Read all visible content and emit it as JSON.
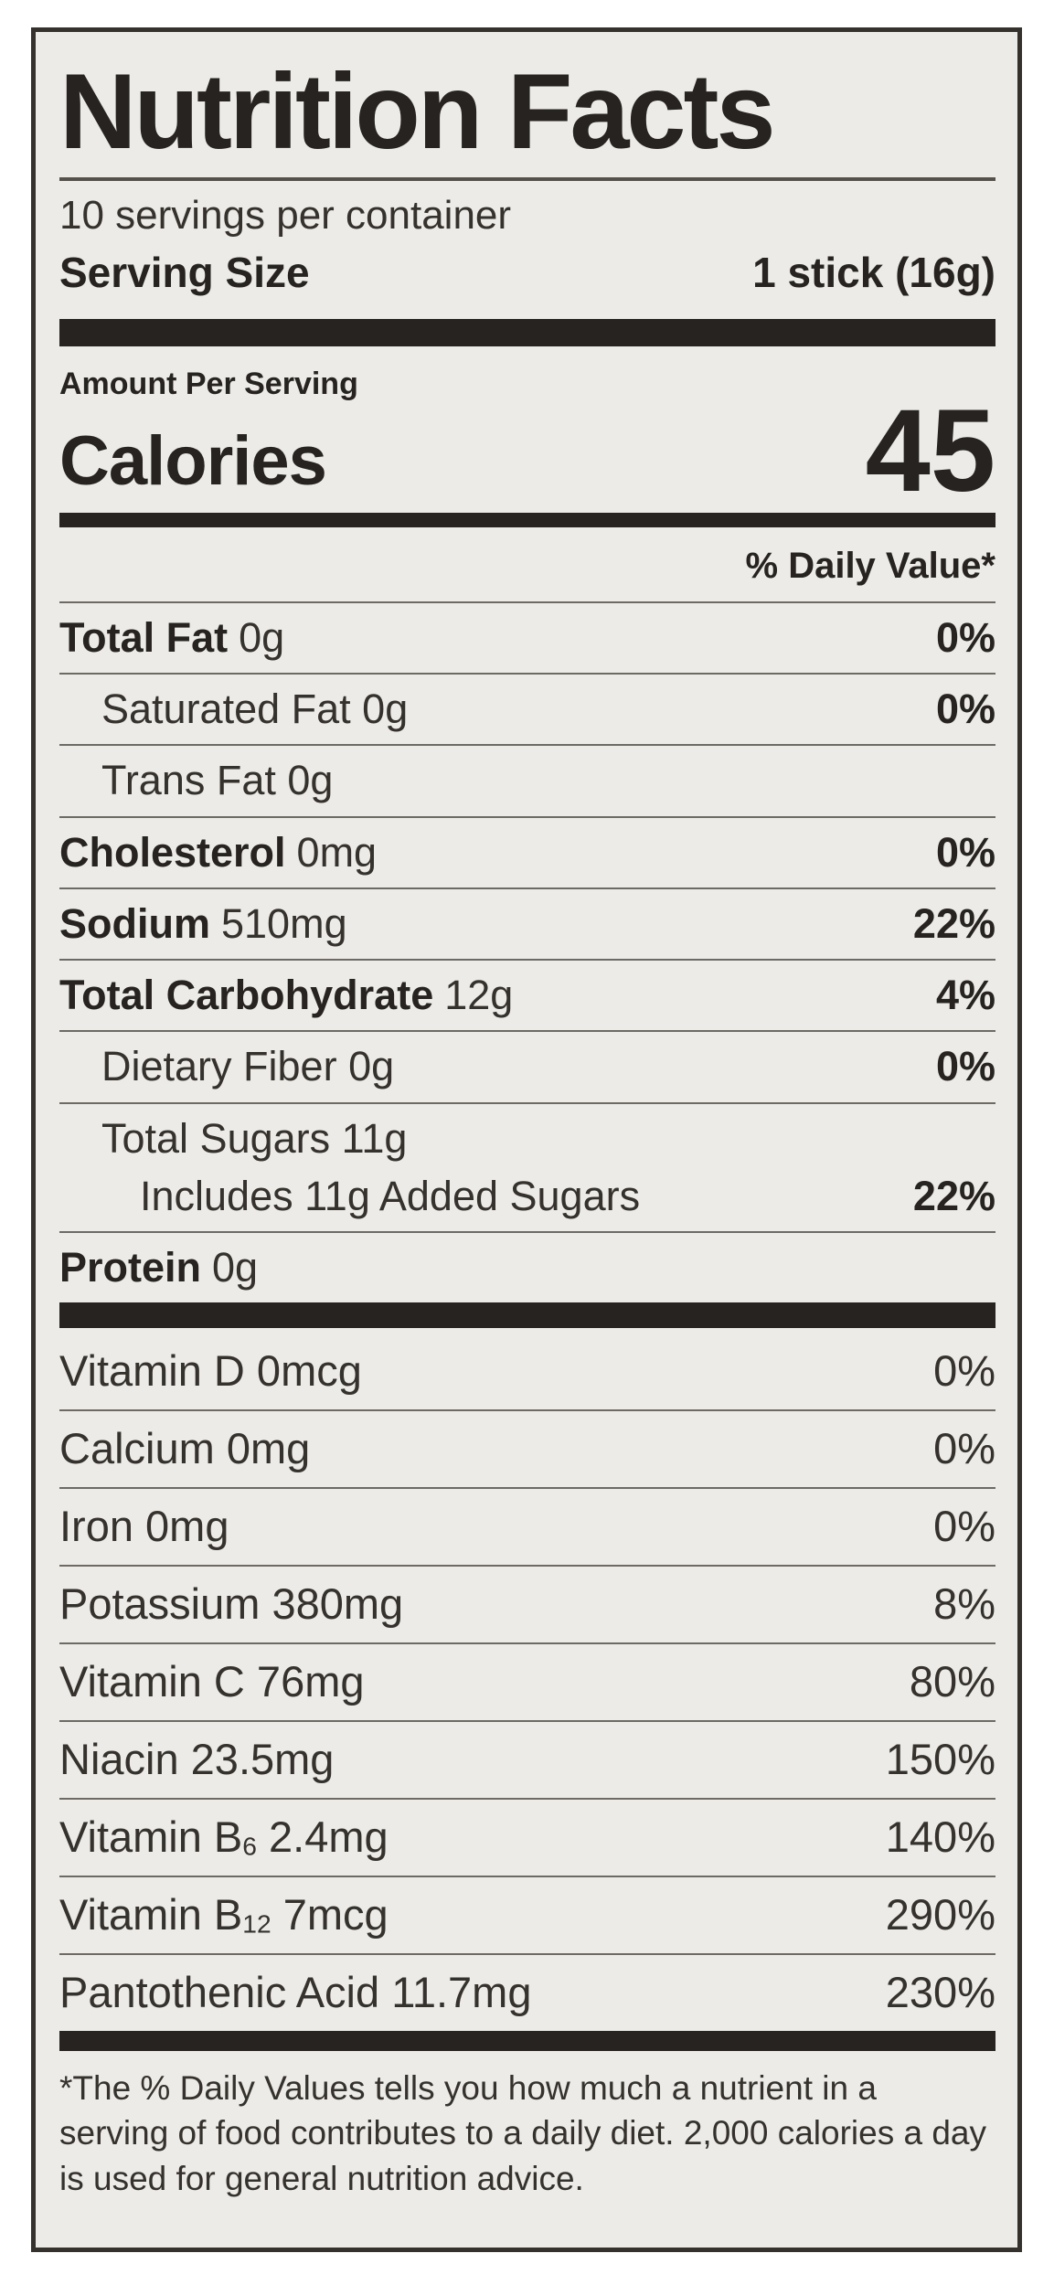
{
  "label": {
    "title": "Nutrition Facts",
    "servings_per_container": "10 servings per container",
    "serving_size_label": "Serving Size",
    "serving_size_value": "1 stick (16g)",
    "amount_per_serving": "Amount Per Serving",
    "calories_label": "Calories",
    "calories_value": "45",
    "daily_value_header": "% Daily Value*",
    "nutrient_rows": [
      {
        "name": "Total Fat",
        "amount": "0g",
        "pct": "0%"
      },
      {
        "name": "Saturated Fat 0g",
        "amount": "",
        "pct": "0%"
      },
      {
        "name": "Trans Fat 0g",
        "amount": "",
        "pct": ""
      },
      {
        "name": "Cholesterol",
        "amount": "0mg",
        "pct": "0%"
      },
      {
        "name": "Sodium",
        "amount": "510mg",
        "pct": "22%"
      },
      {
        "name": "Total Carbohydrate",
        "amount": "12g",
        "pct": "4%"
      },
      {
        "name": "Dietary Fiber 0g",
        "amount": "",
        "pct": "0%"
      },
      {
        "name": "Total Sugars 11g",
        "amount": "",
        "pct": ""
      },
      {
        "name": "Includes 11g Added Sugars",
        "amount": "",
        "pct": "22%"
      },
      {
        "name": "Protein",
        "amount": "0g",
        "pct": ""
      }
    ],
    "vitamin_rows": [
      {
        "pre": "Vitamin D 0mcg",
        "sub": "",
        "post": "",
        "pct": "0%"
      },
      {
        "pre": "Calcium 0mg",
        "sub": "",
        "post": "",
        "pct": "0%"
      },
      {
        "pre": "Iron 0mg",
        "sub": "",
        "post": "",
        "pct": "0%"
      },
      {
        "pre": "Potassium 380mg",
        "sub": "",
        "post": "",
        "pct": "8%"
      },
      {
        "pre": "Vitamin C 76mg",
        "sub": "",
        "post": "",
        "pct": "80%"
      },
      {
        "pre": "Niacin 23.5mg",
        "sub": "",
        "post": "",
        "pct": "150%"
      },
      {
        "pre": "Vitamin B",
        "sub": "6",
        "post": " 2.4mg",
        "pct": "140%"
      },
      {
        "pre": "Vitamin B",
        "sub": "12",
        "post": " 7mcg",
        "pct": "290%"
      },
      {
        "pre": "Pantothenic Acid 11.7mg",
        "sub": "",
        "post": "",
        "pct": "230%"
      }
    ],
    "footnote": "*The % Daily Values tells you how much a nutrient in a serving of food contributes to a daily diet. 2,000 calories a day is used for general nutrition advice."
  }
}
